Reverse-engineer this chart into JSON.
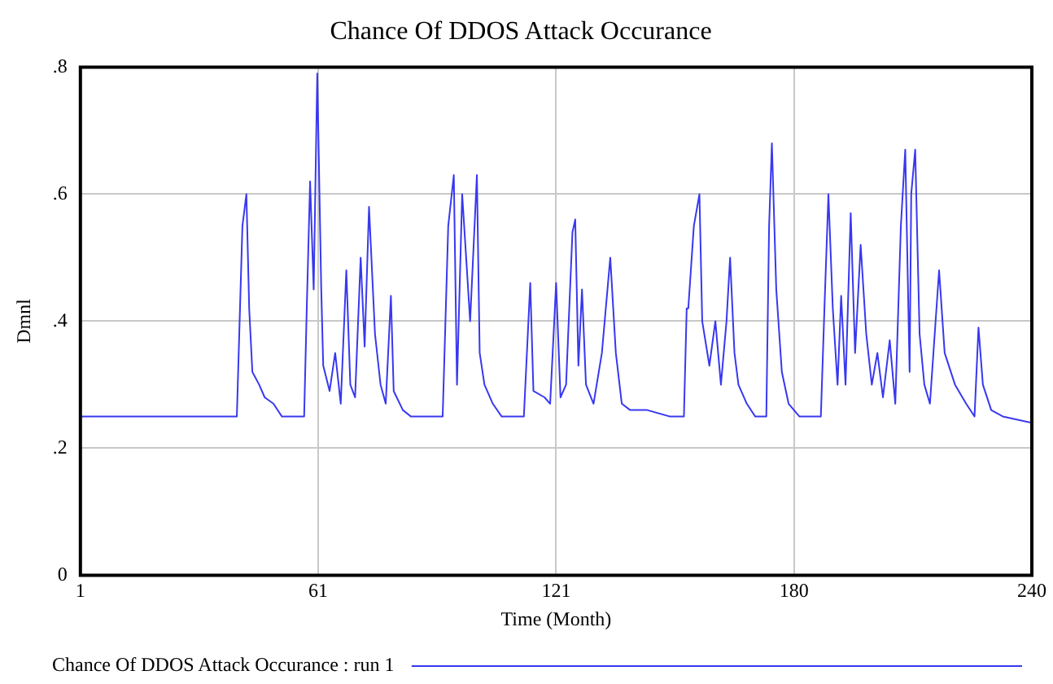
{
  "chart_data": {
    "type": "line",
    "title": "Chance Of DDOS Attack Occurance",
    "xlabel": "Time (Month)",
    "ylabel": "Dmnl",
    "xlim": [
      1,
      240
    ],
    "xticks": [
      1,
      {
        "value": 60.75,
        "label": "61"
      },
      {
        "value": 120.5,
        "label": "121"
      },
      {
        "value": 180.25,
        "label": "180"
      },
      240
    ],
    "ylim": [
      0,
      0.8
    ],
    "yticks": [
      0,
      {
        "value": 0.2,
        "label": ".2"
      },
      {
        "value": 0.4,
        "label": ".4"
      },
      {
        "value": 0.6,
        "label": ".6"
      },
      {
        "value": 0.8,
        "label": ".8"
      }
    ],
    "grid": true,
    "legend": "bottom",
    "marker": "none",
    "line_style": "solid",
    "series": [
      {
        "name": "Chance Of DDOS Attack Occurance : run 1",
        "color": "#3838f0",
        "x": [
          1,
          40.3,
          41,
          41.7,
          42.7,
          43.4,
          44.2,
          45.9,
          47.3,
          49.5,
          51.6,
          57.2,
          57.9,
          58.7,
          59.6,
          60.5,
          61.5,
          62,
          63.6,
          65,
          66.4,
          67.8,
          68.8,
          70,
          71.4,
          72.4,
          73.5,
          75,
          76.4,
          77.7,
          79,
          79.7,
          82,
          84,
          86,
          92,
          93.4,
          94.8,
          95.6,
          96.9,
          98.9,
          100.6,
          101.3,
          102.5,
          104.6,
          106.8,
          112.4,
          114,
          114.8,
          117.6,
          119,
          120.5,
          121.6,
          123,
          124.6,
          125.3,
          126.1,
          127,
          128,
          129.9,
          132,
          134.1,
          135.5,
          137,
          139.1,
          143.4,
          149,
          152.6,
          153.3,
          153.7,
          155.1,
          156.5,
          157.2,
          159,
          160.5,
          161.9,
          163.3,
          164.2,
          165.3,
          166.3,
          168.4,
          170.5,
          173.3,
          174,
          174.7,
          175.8,
          177.2,
          178.9,
          181.6,
          187,
          187.9,
          188.9,
          190,
          191.2,
          192.1,
          193.2,
          194.5,
          195.6,
          197,
          198.4,
          199.8,
          201.2,
          202.6,
          204.3,
          205.7,
          207.1,
          208.2,
          209.3,
          209.7,
          210.7,
          211.8,
          213,
          214.4,
          216.7,
          218.1,
          220.7,
          223.5,
          225.6,
          226.6,
          227.7,
          229.8,
          232.7,
          240
        ],
        "values": [
          0.25,
          0.25,
          0.4,
          0.55,
          0.6,
          0.42,
          0.32,
          0.3,
          0.28,
          0.27,
          0.25,
          0.25,
          0.43,
          0.62,
          0.45,
          0.79,
          0.45,
          0.33,
          0.29,
          0.35,
          0.27,
          0.48,
          0.3,
          0.28,
          0.5,
          0.36,
          0.58,
          0.38,
          0.3,
          0.27,
          0.44,
          0.29,
          0.26,
          0.25,
          0.25,
          0.25,
          0.55,
          0.63,
          0.3,
          0.6,
          0.4,
          0.63,
          0.35,
          0.3,
          0.27,
          0.25,
          0.25,
          0.46,
          0.29,
          0.28,
          0.27,
          0.46,
          0.28,
          0.3,
          0.54,
          0.56,
          0.33,
          0.45,
          0.3,
          0.27,
          0.35,
          0.5,
          0.35,
          0.27,
          0.26,
          0.26,
          0.25,
          0.25,
          0.42,
          0.42,
          0.55,
          0.6,
          0.4,
          0.33,
          0.4,
          0.3,
          0.4,
          0.5,
          0.35,
          0.3,
          0.27,
          0.25,
          0.25,
          0.55,
          0.68,
          0.45,
          0.32,
          0.27,
          0.25,
          0.25,
          0.42,
          0.6,
          0.42,
          0.3,
          0.44,
          0.3,
          0.57,
          0.35,
          0.52,
          0.38,
          0.3,
          0.35,
          0.28,
          0.37,
          0.27,
          0.55,
          0.67,
          0.32,
          0.6,
          0.67,
          0.38,
          0.3,
          0.27,
          0.48,
          0.35,
          0.3,
          0.27,
          0.25,
          0.39,
          0.3,
          0.26,
          0.25,
          0.24
        ]
      }
    ]
  }
}
